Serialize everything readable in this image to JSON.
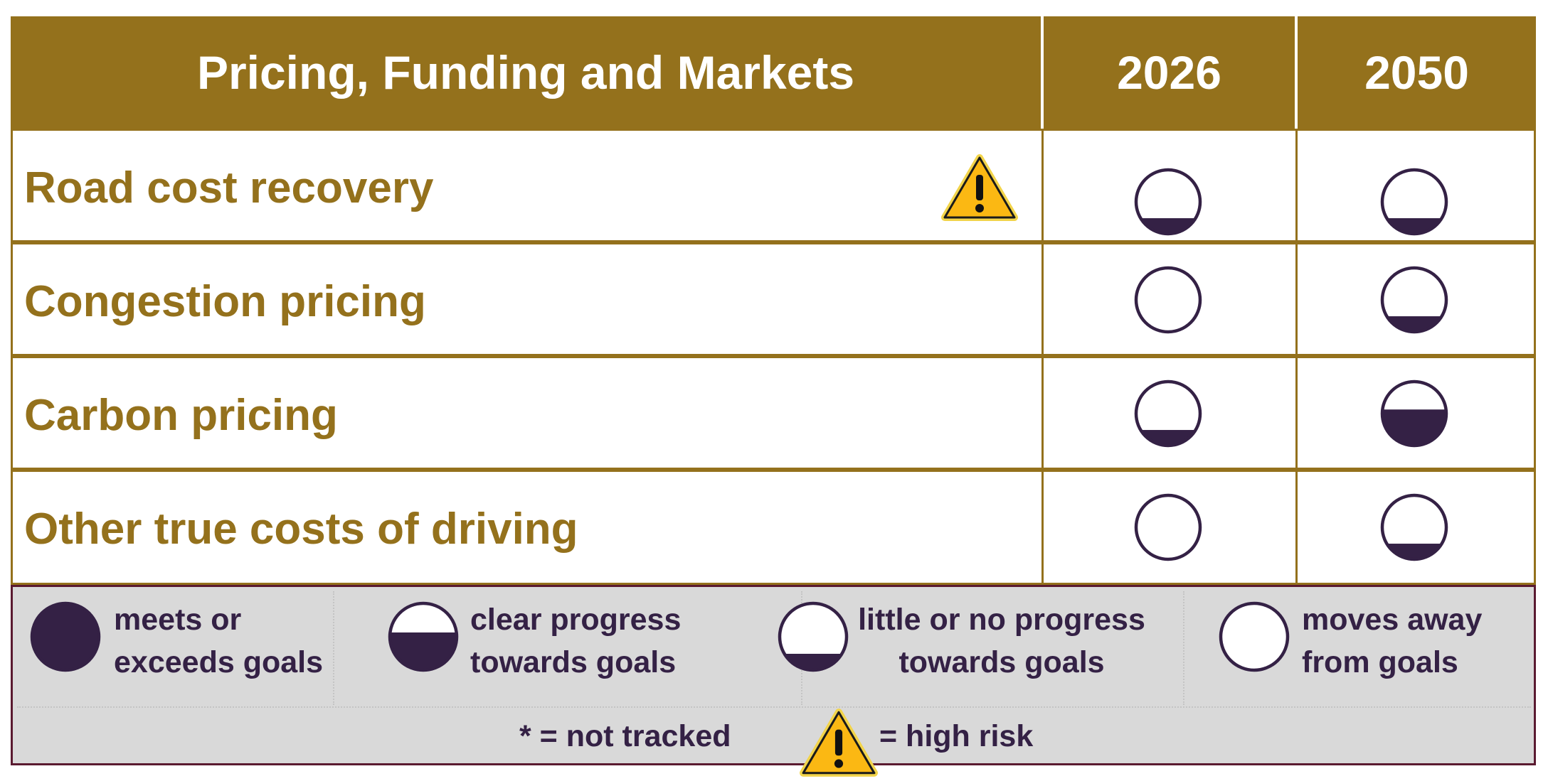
{
  "table": {
    "title": "Pricing, Funding and Markets",
    "years": [
      "2026",
      "2050"
    ],
    "rows": [
      {
        "label": "Road cost recovery",
        "high_risk": true,
        "ratings": [
          0.25,
          0.25
        ]
      },
      {
        "label": "Congestion pricing",
        "high_risk": false,
        "ratings": [
          0,
          0.25
        ]
      },
      {
        "label": "Carbon pricing",
        "high_risk": false,
        "ratings": [
          0.25,
          0.75
        ]
      },
      {
        "label": "Other true costs of driving",
        "high_risk": false,
        "ratings": [
          0,
          0.25
        ]
      }
    ]
  },
  "legend": {
    "items": [
      {
        "line1": "meets or",
        "line2": "exceeds goals",
        "fill": 1.0
      },
      {
        "line1": "clear progress",
        "line2": "towards goals",
        "fill": 0.75
      },
      {
        "line1": "little or no progress",
        "line2": "towards goals",
        "fill": 0.25
      },
      {
        "line1": "moves away",
        "line2": "from goals",
        "fill": 0
      }
    ],
    "not_tracked": "* = not tracked",
    "high_risk": "= high risk"
  },
  "colors": {
    "brand_gold": "#94711c",
    "rating_fill": "#342145",
    "legend_bg": "#d9d9d9",
    "warning_yellow": "#fbb813"
  },
  "icons": {
    "rating": "harvey-ball-icon",
    "risk": "warning-triangle-icon"
  }
}
